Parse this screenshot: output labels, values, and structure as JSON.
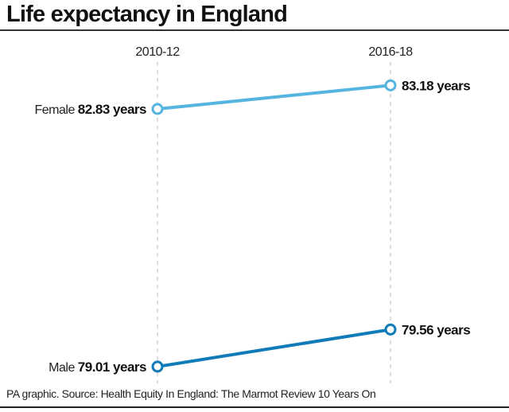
{
  "chart_data": {
    "type": "line",
    "title": "Life expectancy in England",
    "categories": [
      "2010-12",
      "2016-18"
    ],
    "unit": "years",
    "series": [
      {
        "name": "Female",
        "values": [
          82.83,
          83.18
        ],
        "color": "#56b4e0"
      },
      {
        "name": "Male",
        "values": [
          79.01,
          79.56
        ],
        "color": "#0f7bb8"
      }
    ],
    "grid": "dashed vertical lines at each category",
    "legend": "none (series labelled directly)"
  },
  "source": "PA graphic. Source: Health Equity In England: The Marmot Review 10 Years On"
}
